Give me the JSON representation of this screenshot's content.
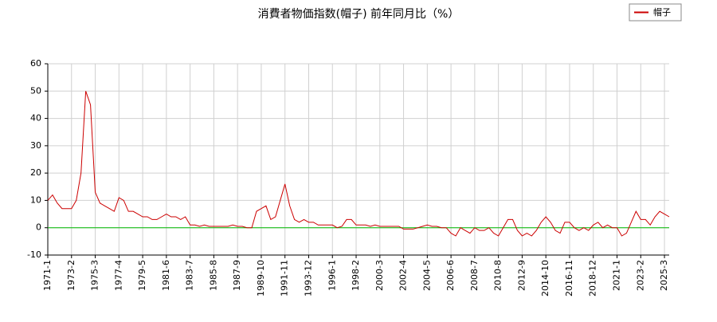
{
  "chart_data": {
    "type": "line",
    "title": "消費者物価指数(帽子) 前年同月比（%）",
    "categories": [
      "1971-1",
      null,
      null,
      null,
      null,
      "1973-2",
      null,
      null,
      null,
      null,
      "1975-3",
      null,
      null,
      null,
      null,
      "1977-4",
      null,
      null,
      null,
      null,
      "1979-5",
      null,
      null,
      null,
      null,
      "1981-6",
      null,
      null,
      null,
      null,
      "1983-7",
      null,
      null,
      null,
      null,
      "1985-8",
      null,
      null,
      null,
      null,
      "1987-9",
      null,
      null,
      null,
      null,
      "1989-10",
      null,
      null,
      null,
      null,
      "1991-11",
      null,
      null,
      null,
      null,
      "1993-12",
      null,
      null,
      null,
      null,
      "1996-1",
      null,
      null,
      null,
      null,
      "1998-2",
      null,
      null,
      null,
      null,
      "2000-3",
      null,
      null,
      null,
      null,
      "2002-4",
      null,
      null,
      null,
      null,
      "2004-5",
      null,
      null,
      null,
      null,
      "2006-6",
      null,
      null,
      null,
      null,
      "2008-7",
      null,
      null,
      null,
      null,
      "2010-8",
      null,
      null,
      null,
      null,
      "2012-9",
      null,
      null,
      null,
      null,
      "2014-10",
      null,
      null,
      null,
      null,
      "2016-11",
      null,
      null,
      null,
      null,
      "2018-12",
      null,
      null,
      null,
      null,
      "2021-1",
      null,
      null,
      null,
      null,
      "2023-2",
      null,
      null,
      null,
      null,
      "2025-3",
      null
    ],
    "series": [
      {
        "name": "帽子",
        "color": "#cc0000",
        "values": [
          10,
          12,
          9,
          7,
          7,
          7,
          10,
          20,
          50,
          45,
          13,
          9,
          8,
          7,
          6,
          11,
          10,
          6,
          6,
          5,
          4,
          4,
          3,
          3,
          4,
          5,
          4,
          4,
          3,
          4,
          1,
          1,
          0.5,
          1,
          0.5,
          0.5,
          0.5,
          0.5,
          0.5,
          1,
          0.5,
          0.5,
          0,
          0,
          6,
          7,
          8,
          3,
          4,
          10,
          16,
          8,
          3,
          2,
          3,
          2,
          2,
          1,
          1,
          1,
          1,
          0,
          0.5,
          3,
          3,
          1,
          1,
          1,
          0.5,
          1,
          0.5,
          0.5,
          0.5,
          0.5,
          0.5,
          -0.5,
          -0.5,
          -0.5,
          0,
          0.5,
          1,
          0.5,
          0.5,
          0,
          0,
          -2,
          -3,
          0,
          -1,
          -2,
          0,
          -1,
          -1,
          0,
          -2,
          -3,
          0,
          3,
          3,
          -1,
          -3,
          -2,
          -3,
          -1,
          2,
          4,
          2,
          -1,
          -2,
          2,
          2,
          0,
          -1,
          0,
          -1,
          1,
          2,
          0,
          1,
          0,
          0,
          -3,
          -2,
          2,
          6,
          3,
          3,
          1,
          4,
          6,
          5,
          4
        ]
      }
    ],
    "ylim": [
      -10,
      60
    ],
    "yticks": [
      -10,
      0,
      10,
      20,
      30,
      40,
      50,
      60
    ],
    "grid": true,
    "legend": "top-right",
    "zero_line": {
      "value": 0,
      "color": "#00bb00"
    }
  }
}
